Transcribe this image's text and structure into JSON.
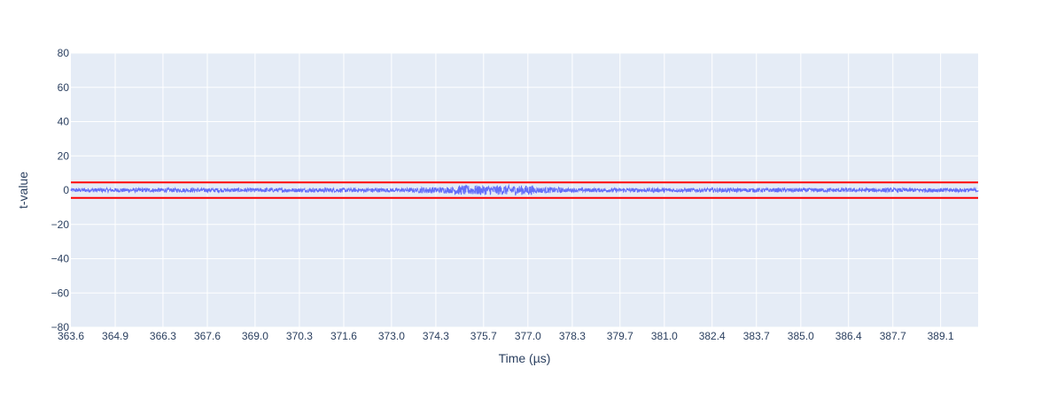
{
  "chart_data": {
    "type": "line",
    "title": "",
    "xlabel": "Time (µs)",
    "ylabel": "t-value",
    "xlim": [
      363.6,
      390.2
    ],
    "ylim": [
      -80,
      80
    ],
    "x_tick_labels": [
      "363.6",
      "364.9",
      "366.3",
      "367.6",
      "369.0",
      "370.3",
      "371.6",
      "373.0",
      "374.3",
      "375.7",
      "377.0",
      "378.3",
      "379.7",
      "381.0",
      "382.4",
      "383.7",
      "385.0",
      "386.4",
      "387.7",
      "389.1"
    ],
    "y_ticks": [
      80,
      60,
      40,
      20,
      0,
      -20,
      -40,
      -60,
      -80
    ],
    "y_tick_labels": [
      "80",
      "60",
      "40",
      "20",
      "0",
      "−20",
      "−40",
      "−60",
      "−80"
    ],
    "thresholds": [
      4.5,
      -4.5
    ],
    "series": [
      {
        "color": "#636efa",
        "noise_profile": [
          {
            "x_start": 363.6,
            "x_end": 373.8,
            "amplitude": 1.2
          },
          {
            "x_start": 373.8,
            "x_end": 374.8,
            "amplitude": 1.8
          },
          {
            "x_start": 374.8,
            "x_end": 377.2,
            "amplitude": 2.8
          },
          {
            "x_start": 377.2,
            "x_end": 378.0,
            "amplitude": 1.7
          },
          {
            "x_start": 378.0,
            "x_end": 390.2,
            "amplitude": 1.2
          }
        ]
      }
    ],
    "colors": {
      "plot_bg": "#e5ecf6",
      "grid": "#ffffff",
      "trace": "#636efa",
      "threshold": "#ff0000",
      "text": "#2a3f5f"
    },
    "grid": true
  }
}
